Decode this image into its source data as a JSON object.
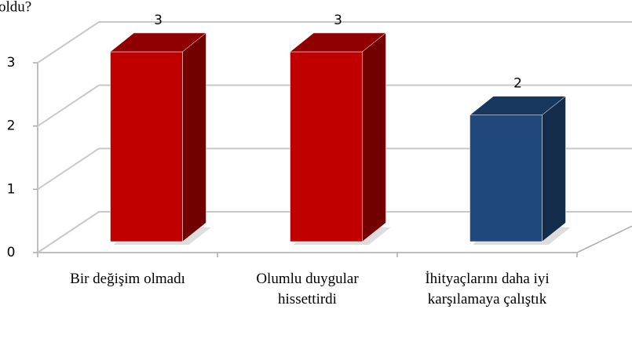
{
  "chart_data": {
    "type": "bar3d",
    "title": "oldu?",
    "categories": [
      "Bir değişim olmadı",
      "Olumlu duygular hissettirdi",
      "İhityaçlarını daha iyi karşılamaya çalıştık"
    ],
    "values": [
      3,
      3,
      2
    ],
    "colors": [
      "#c00000",
      "#c00000",
      "#1f497d"
    ],
    "ylim": [
      0,
      3
    ],
    "yticks": [
      0,
      1,
      2,
      3
    ],
    "grid": true
  }
}
